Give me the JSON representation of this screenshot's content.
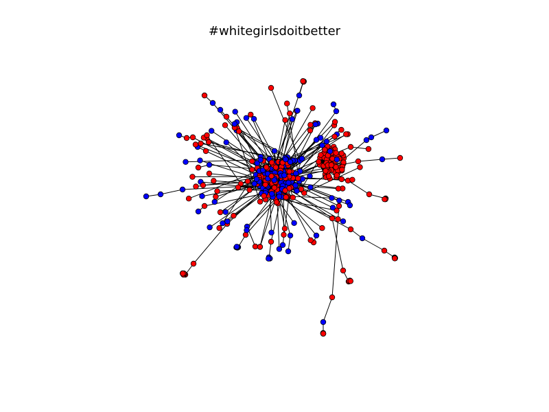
{
  "title": "#whitegirlsdoitbetter",
  "legend": null,
  "colors": {
    "background": "#ffffff",
    "edge": "#000000",
    "node_stroke": "#000000",
    "group_a": "#ff0000",
    "group_b": "#0000ff"
  },
  "node_groups": [
    "red",
    "blue"
  ]
}
